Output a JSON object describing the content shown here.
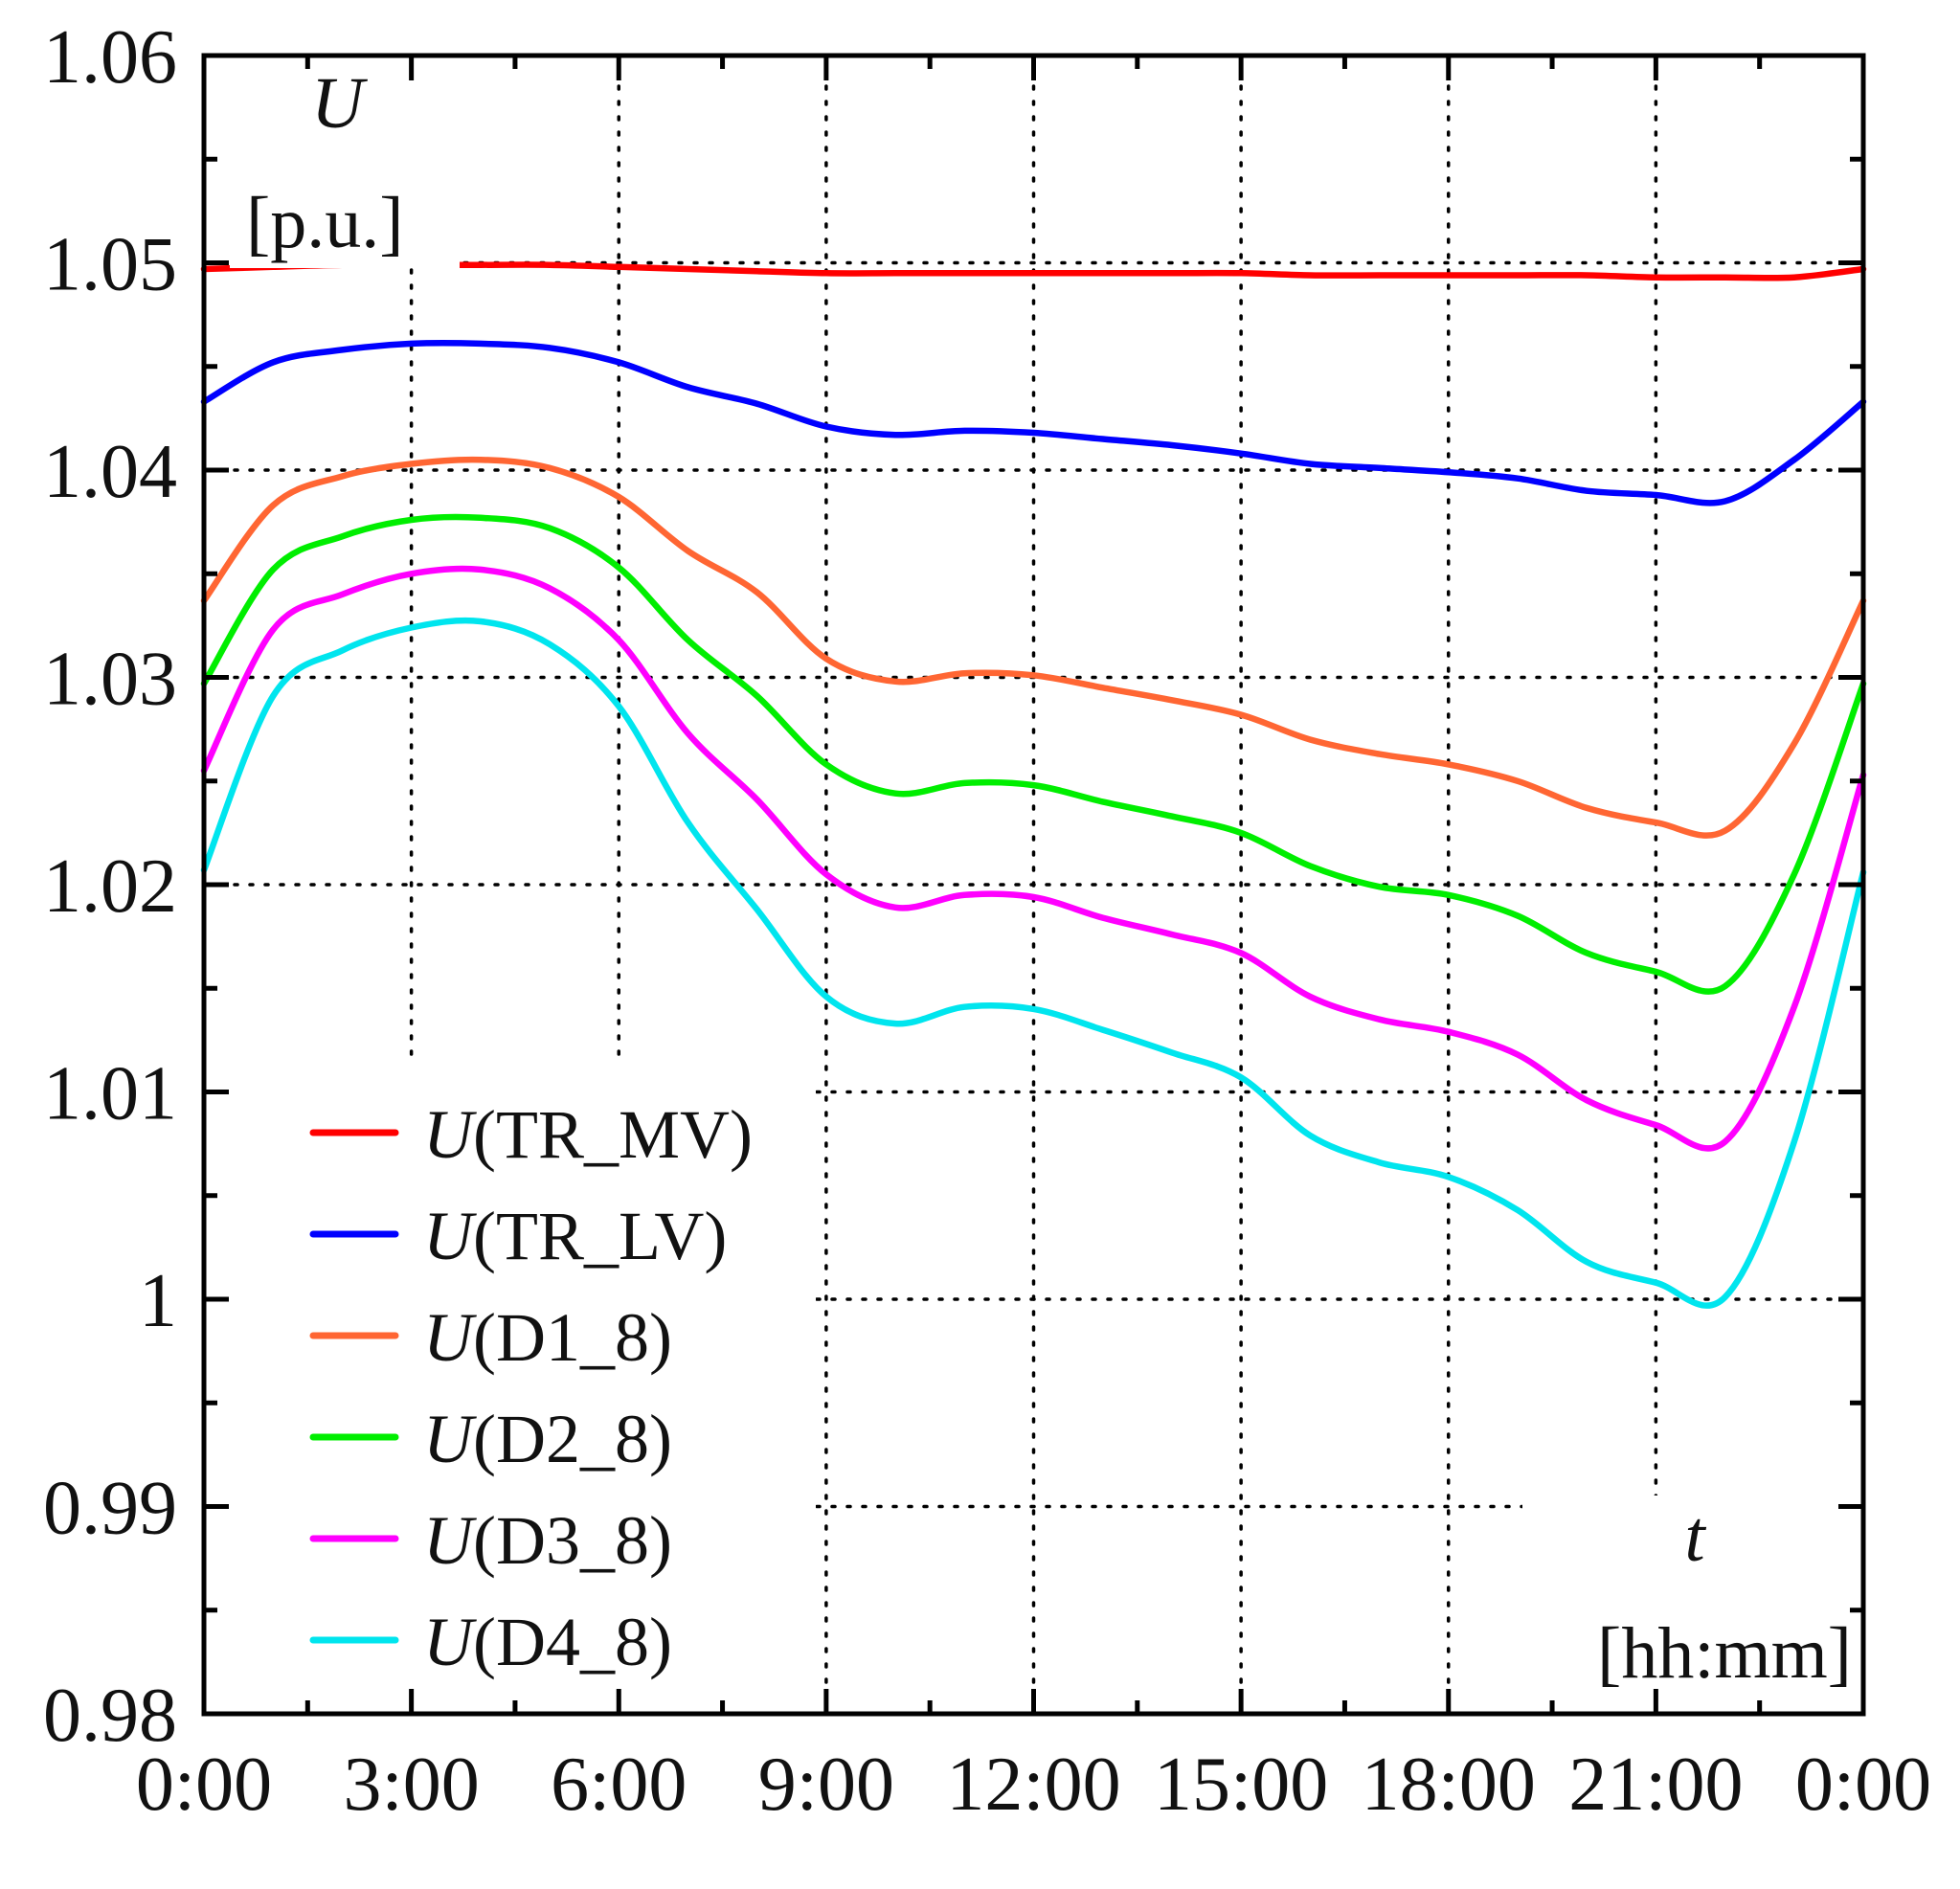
{
  "chart_data": {
    "type": "line",
    "x_tick_labels": [
      "0:00",
      "3:00",
      "6:00",
      "9:00",
      "12:00",
      "15:00",
      "18:00",
      "21:00",
      "0:00"
    ],
    "y_tick_labels": [
      "0.98",
      "0.99",
      "1",
      "1.01",
      "1.02",
      "1.03",
      "1.04",
      "1.05",
      "1.06"
    ],
    "y_ticks": [
      0.98,
      0.99,
      1.0,
      1.01,
      1.02,
      1.03,
      1.04,
      1.05,
      1.06
    ],
    "xlim": [
      0,
      24
    ],
    "ylim": [
      0.98,
      1.06
    ],
    "ylabel": {
      "symbol": "U",
      "unit": "[p.u.]"
    },
    "xlabel": {
      "symbol": "t",
      "unit": "[hh:mm]"
    },
    "grid": true,
    "legend_position": "bottom-left",
    "x": [
      0,
      1,
      2,
      3,
      4,
      5,
      6,
      7,
      8,
      9,
      10,
      11,
      12,
      13,
      14,
      15,
      16,
      17,
      18,
      19,
      20,
      21,
      22,
      23,
      24
    ],
    "series": [
      {
        "name": "TR_MV",
        "color": "#ff0000",
        "values": [
          1.0497,
          1.0498,
          1.0499,
          1.0499,
          1.0499,
          1.0499,
          1.0498,
          1.0497,
          1.0496,
          1.0495,
          1.0495,
          1.0495,
          1.0495,
          1.0495,
          1.0495,
          1.0495,
          1.0494,
          1.0494,
          1.0494,
          1.0494,
          1.0494,
          1.0493,
          1.0493,
          1.0493,
          1.0497
        ]
      },
      {
        "name": "TR_LV",
        "color": "#0000ff",
        "values": [
          1.0433,
          1.0452,
          1.0458,
          1.0461,
          1.0461,
          1.0459,
          1.0452,
          1.044,
          1.0432,
          1.0421,
          1.0417,
          1.0419,
          1.0418,
          1.0415,
          1.0412,
          1.0408,
          1.0403,
          1.0401,
          1.0399,
          1.0396,
          1.039,
          1.0388,
          1.0385,
          1.0405,
          1.0433
        ]
      },
      {
        "name": "D1_8",
        "color": "#ff6633",
        "values": [
          1.0337,
          1.0383,
          1.0397,
          1.0403,
          1.0405,
          1.0401,
          1.0387,
          1.0361,
          1.0341,
          1.0309,
          1.0298,
          1.0302,
          1.0301,
          1.0295,
          1.0289,
          1.0282,
          1.027,
          1.0263,
          1.0258,
          1.025,
          1.0237,
          1.023,
          1.0226,
          1.0268,
          1.0337
        ]
      },
      {
        "name": "D2_8",
        "color": "#00ee00",
        "values": [
          1.0297,
          1.0352,
          1.0368,
          1.0376,
          1.0377,
          1.0372,
          1.0353,
          1.0318,
          1.0291,
          1.0258,
          1.0244,
          1.0249,
          1.0248,
          1.024,
          1.0233,
          1.0225,
          1.0209,
          1.0199,
          1.0195,
          1.0185,
          1.0167,
          1.0158,
          1.0151,
          1.0205,
          1.0297
        ]
      },
      {
        "name": "D3_8",
        "color": "#ff00ff",
        "values": [
          1.0255,
          1.0323,
          1.034,
          1.035,
          1.0352,
          1.0343,
          1.0318,
          1.0273,
          1.0241,
          1.0205,
          1.0189,
          1.0195,
          1.0194,
          1.0184,
          1.0176,
          1.0167,
          1.0146,
          1.0135,
          1.0129,
          1.0118,
          1.0096,
          1.0084,
          1.0076,
          1.0141,
          1.0253
        ]
      },
      {
        "name": "D4_8",
        "color": "#00e5ee",
        "values": [
          1.0207,
          1.0291,
          1.0313,
          1.0324,
          1.0327,
          1.0316,
          1.0286,
          1.023,
          1.0188,
          1.0146,
          1.0133,
          1.0141,
          1.014,
          1.013,
          1.0119,
          1.0107,
          1.0079,
          1.0066,
          1.0059,
          1.0043,
          1.0018,
          1.0008,
          1.0001,
          1.0076,
          1.0206
        ]
      }
    ],
    "legend_symbol": "U"
  }
}
